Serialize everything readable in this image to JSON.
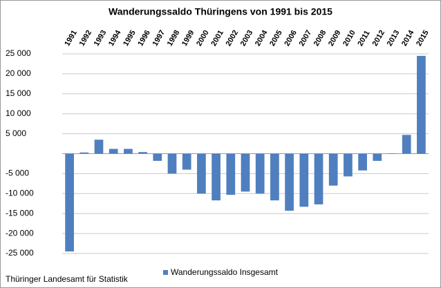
{
  "chart_data": {
    "type": "bar",
    "title": "Wanderungssaldo Thüringens von 1991 bis 2015",
    "categories": [
      "1991",
      "1992",
      "1993",
      "1994",
      "1995",
      "1996",
      "1997",
      "1998",
      "1999",
      "2000",
      "2001",
      "2002",
      "2003",
      "2004",
      "2005",
      "2006",
      "2007",
      "2008",
      "2009",
      "2010",
      "2011",
      "2012",
      "2013",
      "2014",
      "2015"
    ],
    "series": [
      {
        "name": "Wanderungssaldo Insgesamt",
        "color": "#4f7fbf",
        "values": [
          -24500,
          300,
          3500,
          1200,
          1200,
          400,
          -1800,
          -5000,
          -4000,
          -10000,
          -11700,
          -10300,
          -9500,
          -10000,
          -11700,
          -14300,
          -13300,
          -12700,
          -8000,
          -5700,
          -4200,
          -1800,
          100,
          4700,
          24500
        ]
      }
    ],
    "ylim": [
      -25000,
      25000
    ],
    "yticks": [
      {
        "value": -25000,
        "label": "-25 000"
      },
      {
        "value": -20000,
        "label": "-20 000"
      },
      {
        "value": -15000,
        "label": "-15 000"
      },
      {
        "value": -10000,
        "label": "-10 000"
      },
      {
        "value": -5000,
        "label": "-5 000"
      },
      {
        "value": 5000,
        "label": "5 000"
      },
      {
        "value": 10000,
        "label": "10 000"
      },
      {
        "value": 15000,
        "label": "15 000"
      },
      {
        "value": 20000,
        "label": "20 000"
      },
      {
        "value": 25000,
        "label": "25 000"
      }
    ],
    "grid": true,
    "source": "Thüringer Landesamt für Statistik"
  }
}
